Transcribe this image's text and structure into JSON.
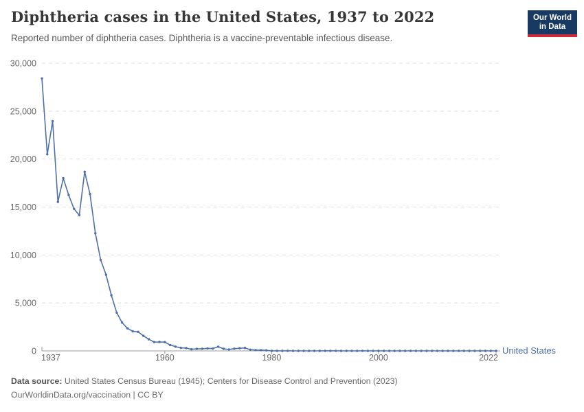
{
  "header": {
    "title": "Diphtheria cases in the United States, 1937 to 2022",
    "subtitle": "Reported number of diphtheria cases. Diphtheria is a vaccine-preventable infectious disease.",
    "logo": {
      "line1": "Our World",
      "line2": "in Data",
      "bg_color": "#183a62",
      "bar_color": "#d2293b"
    }
  },
  "chart_data": {
    "type": "line",
    "title": "Diphtheria cases in the United States, 1937 to 2022",
    "xlabel": "",
    "ylabel": "",
    "xlim": [
      1937,
      2022
    ],
    "ylim": [
      0,
      30000
    ],
    "grid": "horizontal-dashed",
    "legend_position": "end-of-line-label",
    "x_ticks": [
      1937,
      1960,
      1980,
      2000,
      2022
    ],
    "y_ticks": [
      0,
      5000,
      10000,
      15000,
      20000,
      25000,
      30000
    ],
    "y_tick_labels": [
      "0",
      "5,000",
      "10,000",
      "15,000",
      "20,000",
      "25,000",
      "30,000"
    ],
    "x": [
      1937,
      1938,
      1939,
      1940,
      1941,
      1942,
      1943,
      1944,
      1945,
      1946,
      1947,
      1948,
      1949,
      1950,
      1951,
      1952,
      1953,
      1954,
      1955,
      1956,
      1957,
      1958,
      1959,
      1960,
      1961,
      1962,
      1963,
      1964,
      1965,
      1966,
      1967,
      1968,
      1969,
      1970,
      1971,
      1972,
      1973,
      1974,
      1975,
      1976,
      1977,
      1978,
      1979,
      1980,
      1981,
      1982,
      1983,
      1984,
      1985,
      1986,
      1987,
      1988,
      1989,
      1990,
      1991,
      1992,
      1993,
      1994,
      1995,
      1996,
      1997,
      1998,
      1999,
      2000,
      2001,
      2002,
      2003,
      2004,
      2005,
      2006,
      2007,
      2008,
      2009,
      2010,
      2011,
      2012,
      2013,
      2014,
      2015,
      2016,
      2017,
      2018,
      2019,
      2020,
      2021,
      2022
    ],
    "series": [
      {
        "name": "United States",
        "color": "#4e6fa8",
        "values": [
          28400,
          20500,
          23950,
          15536,
          18000,
          16260,
          14811,
          14150,
          18675,
          16354,
          12262,
          9493,
          7943,
          5796,
          3983,
          2960,
          2355,
          2041,
          1984,
          1568,
          1211,
          918,
          934,
          918,
          617,
          444,
          314,
          293,
          164,
          209,
          219,
          260,
          241,
          435,
          215,
          152,
          228,
          272,
          307,
          128,
          84,
          76,
          59,
          3,
          5,
          2,
          5,
          1,
          3,
          0,
          3,
          2,
          3,
          4,
          5,
          4,
          0,
          2,
          0,
          2,
          4,
          1,
          1,
          1,
          2,
          1,
          1,
          0,
          0,
          0,
          0,
          0,
          0,
          0,
          0,
          1,
          0,
          1,
          0,
          0,
          0,
          1,
          2,
          0,
          0,
          0
        ]
      }
    ]
  },
  "footer": {
    "source_label": "Data source:",
    "source_text": " United States Census Bureau (1945); Centers for Disease Control and Prevention (2023)",
    "license_text": "OurWorldinData.org/vaccination | CC BY"
  },
  "colors": {
    "line": "#4e6fa8",
    "gridline": "#dedede",
    "axis": "#9a9a9a",
    "tick_label": "#666666",
    "title": "#373737",
    "subtitle": "#565656",
    "footer": "#6a6a6a"
  }
}
